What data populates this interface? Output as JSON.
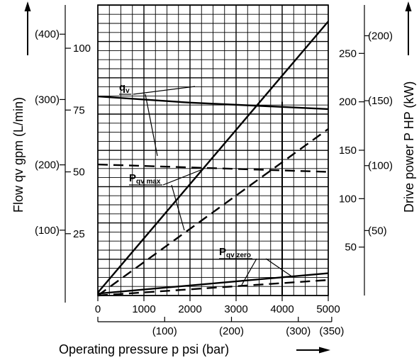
{
  "chart_data": {
    "type": "line",
    "xlabel": "Operating pressure p psi (bar)",
    "ylabel_left": "Flow qv gpm (L/min)",
    "ylabel_right": "Drive power P HP (kW)",
    "x_psi_range": [
      0,
      5000
    ],
    "x_psi_ticks": [
      0,
      1000,
      2000,
      3000,
      4000,
      5000
    ],
    "x_bar_ticks": [
      {
        "value": 100,
        "label": "(100)"
      },
      {
        "value": 200,
        "label": "(200)"
      },
      {
        "value": 300,
        "label": "(300)"
      },
      {
        "value": 350,
        "label": "(350)"
      }
    ],
    "flow_gpm_range": [
      0,
      117.5
    ],
    "flow_gpm_ticks": [
      {
        "value": 25,
        "label": "25"
      },
      {
        "value": 50,
        "label": "50"
      },
      {
        "value": 75,
        "label": "75"
      },
      {
        "value": 100,
        "label": "100"
      }
    ],
    "flow_lpm_ticks": [
      {
        "value": 100,
        "label": "(100)"
      },
      {
        "value": 200,
        "label": "(200)"
      },
      {
        "value": 300,
        "label": "(300)"
      },
      {
        "value": 400,
        "label": "(400)"
      }
    ],
    "power_hp_range": [
      0,
      300
    ],
    "power_hp_ticks": [
      {
        "value": 50,
        "label": "50"
      },
      {
        "value": 100,
        "label": "100"
      },
      {
        "value": 150,
        "label": "150"
      },
      {
        "value": 200,
        "label": "200"
      },
      {
        "value": 250,
        "label": "250"
      }
    ],
    "power_kw_ticks": [
      {
        "value": 50,
        "label": "(50)"
      },
      {
        "value": 100,
        "label": "(100)"
      },
      {
        "value": 150,
        "label": "(150)"
      },
      {
        "value": 200,
        "label": "(200)"
      }
    ],
    "marker_psi": 4000,
    "grid": true,
    "series": [
      {
        "label": "qv",
        "axis": "flow",
        "style": "solid",
        "x": [
          0,
          2000,
          5000
        ],
        "y": [
          80.5,
          78,
          75.4
        ]
      },
      {
        "label": "qv",
        "axis": "flow",
        "style": "dashed",
        "x": [
          0,
          5000
        ],
        "y": [
          53,
          50
        ]
      },
      {
        "label": "Pqv max",
        "axis": "power",
        "style": "solid",
        "x": [
          0,
          5000
        ],
        "y": [
          3,
          283
        ]
      },
      {
        "label": "Pqv max",
        "axis": "power",
        "style": "dashed",
        "x": [
          0,
          5000
        ],
        "y": [
          0,
          172
        ]
      },
      {
        "label": "Pqv zero",
        "axis": "power",
        "style": "solid",
        "x": [
          0,
          5000
        ],
        "y": [
          2,
          23
        ]
      },
      {
        "label": "Pqv zero",
        "axis": "power",
        "style": "dashed",
        "x": [
          0,
          5000
        ],
        "y": [
          0,
          16
        ]
      }
    ],
    "annotations": [
      {
        "main": "q",
        "sub": "v"
      },
      {
        "main": "P",
        "sub": "qv max"
      },
      {
        "main": "P",
        "sub": "qv zero"
      }
    ]
  }
}
